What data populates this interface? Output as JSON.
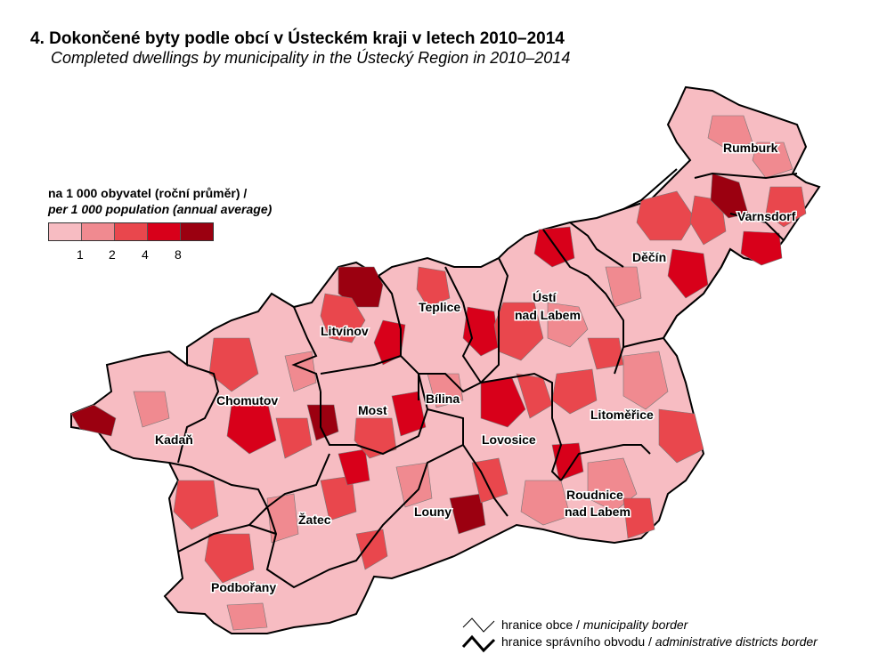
{
  "title": "4. Dokončené byty podle obcí v Ústeckém kraji v letech 2010–2014",
  "subtitle": "Completed dwellings by municipality in the Ústecký Region in 2010–2014",
  "legend": {
    "title_cz": "na 1 000 obyvatel (roční průměr) /",
    "title_en": "per 1 000 population (annual average)",
    "colors": [
      "#f7bcc2",
      "#f08a90",
      "#e9474d",
      "#d8001a",
      "#9b0010"
    ],
    "ticks": [
      "1",
      "2",
      "4",
      "8"
    ]
  },
  "districts": [
    {
      "name": "Rumburk"
    },
    {
      "name": "Varnsdorf"
    },
    {
      "name": "Děčín"
    },
    {
      "name": "Ústí nad Labem"
    },
    {
      "name": "Teplice"
    },
    {
      "name": "Litvínov"
    },
    {
      "name": "Chomutov"
    },
    {
      "name": "Most"
    },
    {
      "name": "Bílina"
    },
    {
      "name": "Kadaň"
    },
    {
      "name": "Lovosice"
    },
    {
      "name": "Litoměřice"
    },
    {
      "name": "Roudnice nad Labem"
    },
    {
      "name": "Louny"
    },
    {
      "name": "Žatec"
    },
    {
      "name": "Podbořany"
    }
  ],
  "border_legend": {
    "municipality_cz": "hranice obce /",
    "municipality_en": "municipality border",
    "district_cz": "hranice správního obvodu /",
    "district_en": "administrative districts border"
  }
}
